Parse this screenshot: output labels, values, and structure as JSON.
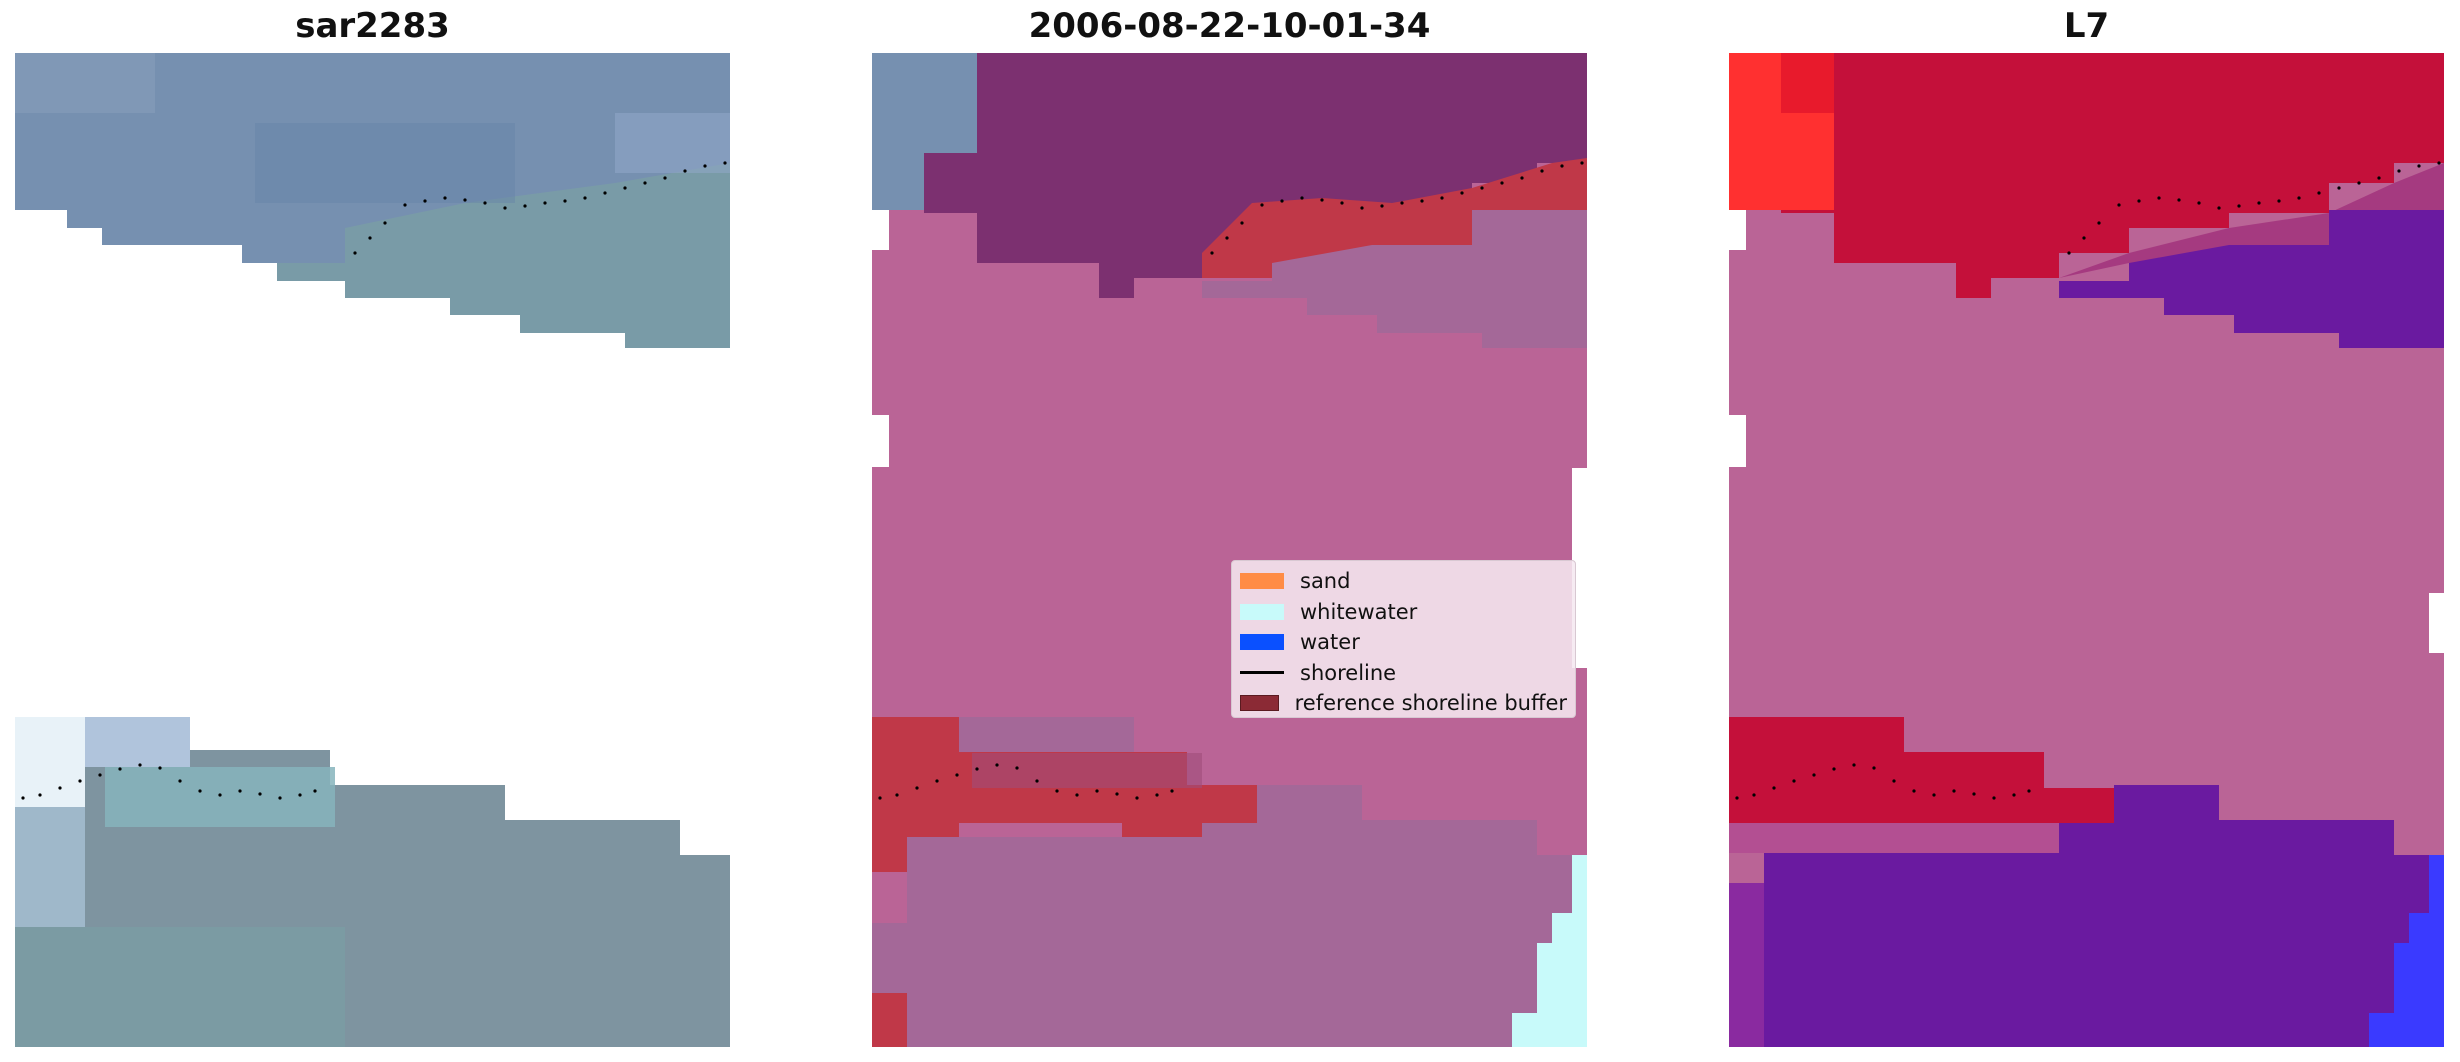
{
  "panels": [
    {
      "title": "sar2283",
      "kind": "satellite"
    },
    {
      "title": "2006-08-22-10-01-34",
      "kind": "classification"
    },
    {
      "title": "L7",
      "kind": "index"
    }
  ],
  "legend": {
    "items": [
      {
        "label": "sand",
        "color": "#ff8c45",
        "kind": "patch"
      },
      {
        "label": "whitewater",
        "color": "#c8fafa",
        "kind": "patch"
      },
      {
        "label": "water",
        "color": "#0a50ff",
        "kind": "patch"
      },
      {
        "label": "shoreline",
        "color": "#000000",
        "kind": "line"
      },
      {
        "label": "reference shoreline buffer",
        "color": "#8b2a35",
        "kind": "patch"
      }
    ]
  },
  "colors": {
    "satellite_blue": "#7088a8",
    "satellite_teal": "#7a9aa0",
    "class_purple": "#7c3070",
    "class_pink": "#ba6496",
    "class_lilac": "#a46898",
    "class_buffer": "#c03848",
    "class_whitewater": "#c8fafa",
    "index_red": "#c8102e",
    "index_bright_red": "#ff3030",
    "index_purple": "#6a1aa0",
    "index_blue": "#3a3aff",
    "shoreline": "#000000"
  }
}
